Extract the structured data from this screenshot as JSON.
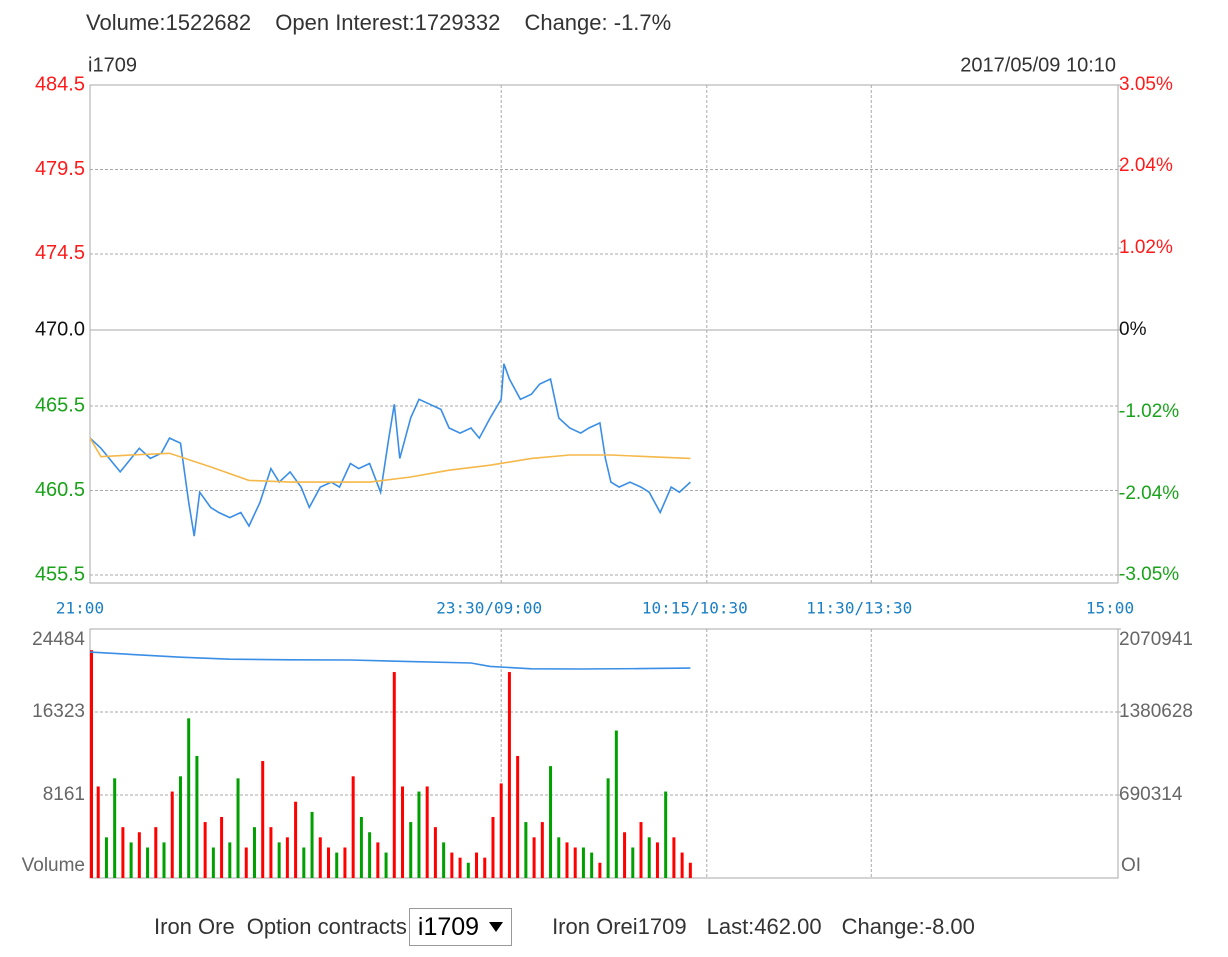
{
  "header": {
    "volume": "Volume:1522682",
    "open_interest": "Open Interest:1729332",
    "change": "Change: -1.7%"
  },
  "chart_data": [
    {
      "type": "line",
      "title": "i1709",
      "subtitle": "2017/05/09 10:10",
      "xlim": [
        0,
        375
      ],
      "xticks": [
        {
          "value": 0,
          "label": "21:00"
        },
        {
          "value": 150,
          "label": "23:30/09:00"
        },
        {
          "value": 225,
          "label": "10:15/10:30"
        },
        {
          "value": 285,
          "label": "11:30/13:30"
        },
        {
          "value": 375,
          "label": "15:00"
        }
      ],
      "ylim": [
        455.5,
        484.5
      ],
      "yticks": [
        484.5,
        479.5,
        474.5,
        {
          "value": 470,
          "label": "470.0"
        },
        465.5,
        460.5,
        455.5
      ],
      "y2lim": [
        -3.05,
        3.05
      ],
      "y2ticks": [
        {
          "value": 3.05,
          "label": "3.05%"
        },
        {
          "value": 2.04,
          "label": "2.04%"
        },
        {
          "value": 1.02,
          "label": "1.02%"
        },
        {
          "value": 0,
          "label": "0%"
        },
        {
          "value": -1.02,
          "label": "-1.02%"
        },
        {
          "value": -2.04,
          "label": "-2.04%"
        },
        {
          "value": -3.05,
          "label": "-3.05%"
        }
      ],
      "grid": true,
      "series": [
        {
          "color": "#3a8ee6",
          "x": [
            0,
            4,
            7,
            11,
            15,
            18,
            22,
            26,
            29,
            33,
            36,
            38,
            40,
            44,
            47,
            51,
            55,
            58,
            62,
            66,
            69,
            73,
            77,
            80,
            84,
            88,
            91,
            95,
            98,
            102,
            106,
            109,
            111,
            113,
            117,
            120,
            124,
            128,
            131,
            135,
            139,
            142,
            146,
            150,
            151,
            153,
            157,
            161,
            164,
            168,
            171,
            175,
            179,
            182,
            186,
            188,
            190,
            193,
            197,
            201,
            204,
            208,
            212,
            215,
            219
          ],
          "values": [
            463.6,
            463.0,
            462.4,
            461.6,
            462.4,
            463.0,
            462.4,
            462.7,
            463.6,
            463.3,
            459.8,
            457.8,
            460.4,
            459.5,
            459.2,
            458.9,
            459.2,
            458.4,
            459.8,
            461.8,
            461.0,
            461.6,
            460.7,
            459.5,
            460.7,
            461.0,
            460.7,
            462.1,
            461.8,
            462.1,
            460.4,
            463.6,
            465.6,
            462.4,
            464.8,
            465.9,
            465.6,
            465.3,
            464.2,
            463.9,
            464.2,
            463.6,
            464.8,
            465.9,
            468.0,
            467.1,
            465.9,
            466.2,
            466.8,
            467.1,
            464.8,
            464.2,
            463.9,
            464.2,
            464.5,
            462.4,
            461.0,
            460.7,
            461.0,
            460.7,
            460.4,
            459.2,
            460.7,
            460.4,
            461.0
          ]
        },
        {
          "color": "#f5b84a",
          "x": [
            0,
            4,
            15,
            29,
            44,
            58,
            73,
            88,
            102,
            117,
            131,
            146,
            161,
            175,
            190,
            204,
            219
          ],
          "values": [
            463.6,
            462.5,
            462.6,
            462.7,
            461.9,
            461.1,
            461.0,
            461.0,
            461.0,
            461.3,
            461.7,
            462.0,
            462.4,
            462.6,
            462.6,
            462.5,
            462.4
          ]
        }
      ]
    },
    {
      "type": "bar",
      "ylabel": "Volume",
      "y2label": "OI",
      "xlim": [
        0,
        375
      ],
      "xticks": [
        150,
        225,
        285
      ],
      "ylim": [
        0,
        24484
      ],
      "yticks": [
        24484,
        16323,
        8161
      ],
      "y2lim": [
        0,
        2070941
      ],
      "y2ticks": [
        2070941,
        1380628,
        690314
      ],
      "grid": true,
      "series": [
        {
          "type": "bar",
          "x": [
            0,
            3,
            6,
            9,
            12,
            15,
            18,
            21,
            24,
            27,
            30,
            33,
            36,
            39,
            42,
            45,
            48,
            51,
            54,
            57,
            60,
            63,
            66,
            69,
            72,
            75,
            78,
            81,
            84,
            87,
            90,
            93,
            96,
            99,
            102,
            105,
            108,
            111,
            114,
            117,
            120,
            123,
            126,
            129,
            132,
            135,
            138,
            141,
            144,
            147,
            150,
            153,
            156,
            159,
            162,
            165,
            168,
            171,
            174,
            177,
            180,
            183,
            186,
            189,
            192,
            195,
            198,
            201,
            204,
            207,
            210,
            213,
            216,
            219
          ],
          "values": [
            22400,
            9000,
            4000,
            9800,
            5000,
            3500,
            4500,
            3000,
            5000,
            3500,
            8500,
            10000,
            15700,
            12000,
            5500,
            3000,
            6000,
            3500,
            9800,
            3000,
            5000,
            11500,
            5000,
            3500,
            4000,
            7500,
            3000,
            6500,
            4000,
            3000,
            2500,
            3000,
            10000,
            6000,
            4500,
            3500,
            2500,
            20250,
            9000,
            5500,
            8500,
            9000,
            5000,
            3500,
            2500,
            2000,
            1500,
            2500,
            2000,
            6000,
            9300,
            20250,
            12000,
            5500,
            4000,
            5500,
            11000,
            4000,
            3500,
            3000,
            3000,
            2500,
            1500,
            9800,
            14500,
            4500,
            3000,
            5500,
            4000,
            3500,
            8500,
            4000,
            2500,
            1500
          ],
          "colors": [
            "#ff0000",
            "#ff0000",
            "#00a000",
            "#00a000",
            "#ff0000",
            "#00a000",
            "#ff0000",
            "#00a000",
            "#ff0000",
            "#00a000",
            "#ff0000",
            "#00a000",
            "#00a000",
            "#00a000",
            "#ff0000",
            "#00a000",
            "#ff0000",
            "#00a000",
            "#00a000",
            "#ff0000",
            "#00a000",
            "#ff0000",
            "#ff0000",
            "#00a000",
            "#ff0000",
            "#ff0000",
            "#00a000",
            "#00a000",
            "#ff0000",
            "#ff0000",
            "#00a000",
            "#ff0000",
            "#ff0000",
            "#00a000",
            "#00a000",
            "#ff0000",
            "#00a000",
            "#ff0000",
            "#ff0000",
            "#00a000",
            "#00a000",
            "#ff0000",
            "#ff0000",
            "#00a000",
            "#ff0000",
            "#ff0000",
            "#00a000",
            "#ff0000",
            "#ff0000",
            "#ff0000",
            "#ff0000",
            "#ff0000",
            "#ff0000",
            "#00a000",
            "#ff0000",
            "#ff0000",
            "#00a000",
            "#00a000",
            "#ff0000",
            "#ff0000",
            "#00a000",
            "#00a000",
            "#ff0000",
            "#00a000",
            "#00a000",
            "#ff0000",
            "#00a000",
            "#ff0000",
            "#00a000",
            "#ff0000",
            "#00a000",
            "#ff0000",
            "#ff0000",
            "#ff0000"
          ]
        },
        {
          "type": "line",
          "axis": "y2",
          "color": "#3a8ee6",
          "x": [
            0,
            15,
            33,
            51,
            73,
            95,
            117,
            139,
            146,
            161,
            179,
            201,
            219
          ],
          "values": [
            1879000,
            1860000,
            1836000,
            1820000,
            1815000,
            1813000,
            1800000,
            1788000,
            1760000,
            1740000,
            1738000,
            1742000,
            1746000
          ]
        }
      ]
    }
  ],
  "footer": {
    "product": "Iron Ore",
    "option_label": "Option contracts",
    "selected": "i1709",
    "quote_name": "Iron Orei1709",
    "last": "Last:462.00",
    "change": "Change:-8.00"
  }
}
